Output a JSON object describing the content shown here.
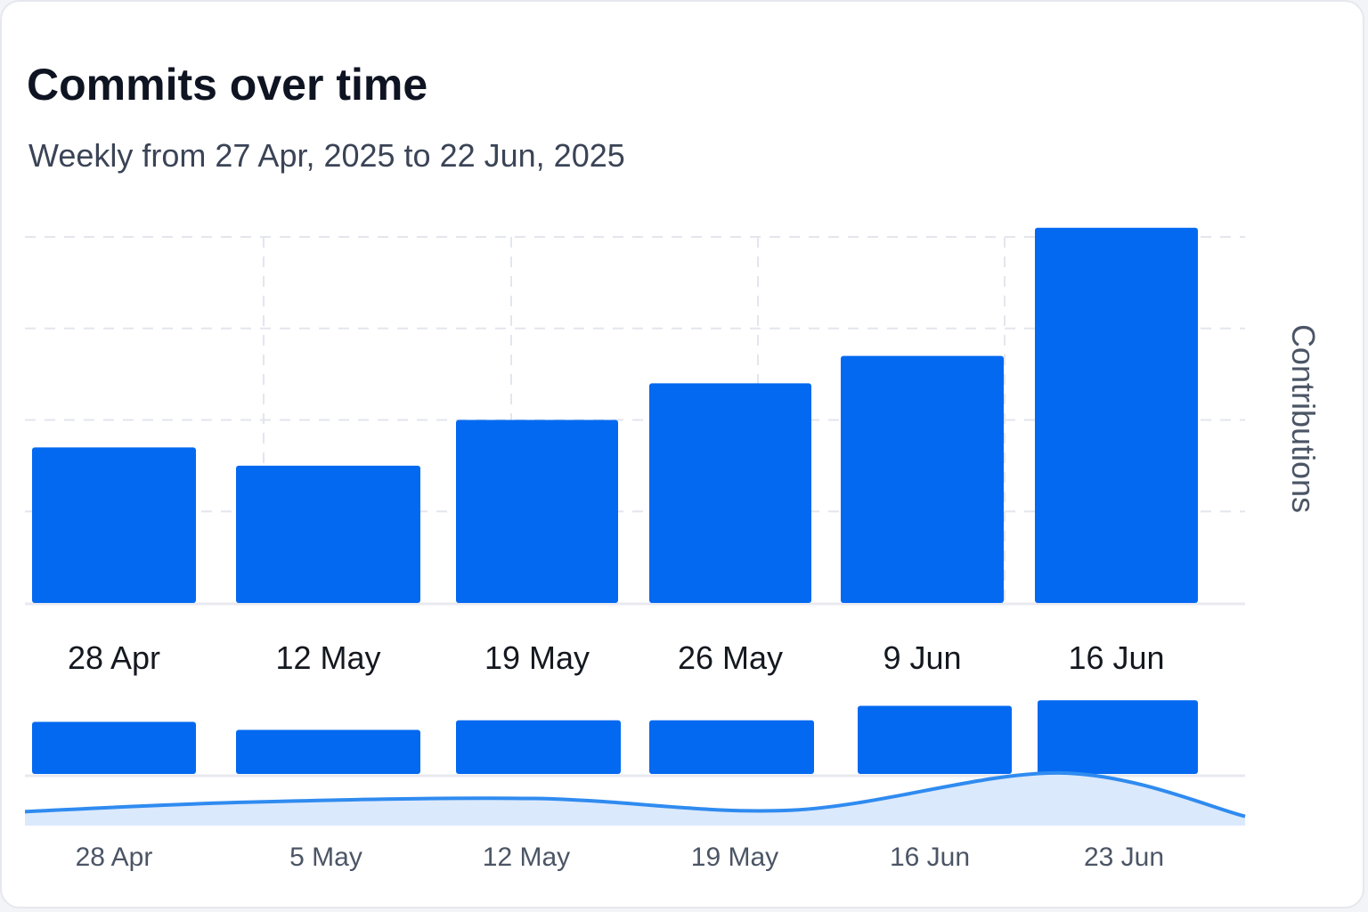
{
  "chart_data": {
    "type": "bar",
    "title": "Commits over time",
    "subtitle": "Weekly from 27 Apr, 2025 to 22 Jun, 2025",
    "ylabel": "Contributions",
    "xlabel": "",
    "grid": true,
    "colors": {
      "bar": "#0369f0",
      "area_fill": "#dbe9fc",
      "area_line": "#2f8bf0",
      "grid": "#e3e6ec",
      "axis": "#e8eaf0"
    },
    "ylim": [
      0,
      40
    ],
    "categories": [
      "28 Apr",
      "12 May",
      "19 May",
      "26 May",
      "9 Jun",
      "16 Jun"
    ],
    "values": [
      17,
      15,
      20,
      24,
      27,
      41
    ],
    "navigator": {
      "type": "bar+area",
      "ylim": [
        0,
        10
      ],
      "bar_values": [
        6.5,
        5.5,
        6.7,
        6.7,
        8.5,
        9.2
      ],
      "area_x": [
        "28 Apr",
        "5 May",
        "12 May",
        "19 May",
        "16 Jun",
        "23 Jun"
      ],
      "area_values": [
        1.8,
        3.0,
        3.5,
        2.0,
        6.8,
        1.2
      ],
      "tick_labels": [
        "28 Apr",
        "5 May",
        "12 May",
        "19 May",
        "16 Jun",
        "23 Jun"
      ]
    }
  }
}
